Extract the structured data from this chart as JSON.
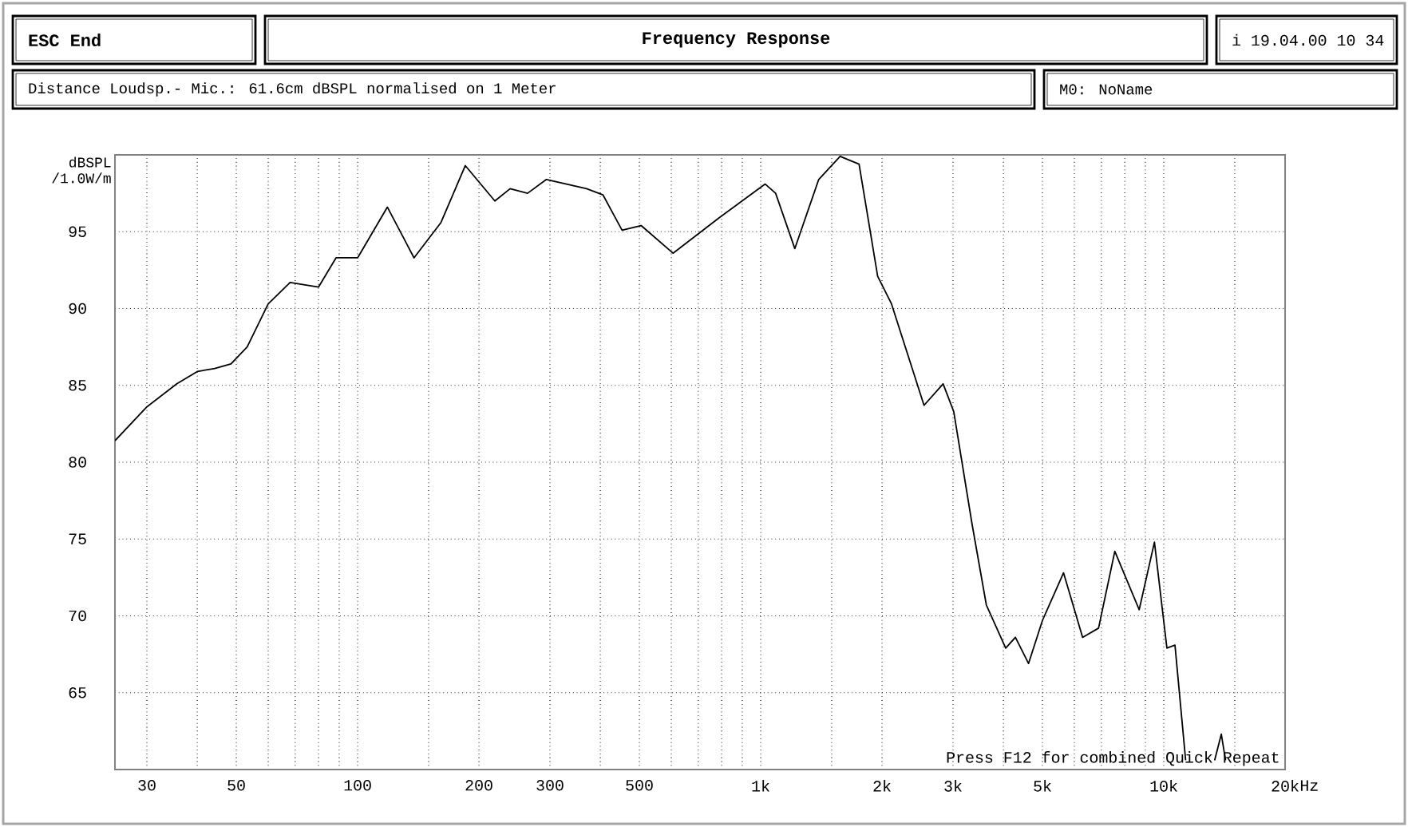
{
  "chart_data": {
    "type": "line",
    "title": "Frequency Response",
    "ylabel": "dBSPL /1.0W/m",
    "xlabel": "Hz",
    "annotations": [
      "ESC  End",
      "i 19.04.00 10 34",
      "Distance Loudsp.- Mic.: 61.6cm dBSPL normalised on 1 Meter",
      "M0:   NoName",
      "Press F12 for combined Quick Repeat"
    ],
    "x": [
      25,
      30,
      35.6,
      40,
      44.2,
      48.5,
      53.2,
      60,
      68,
      80,
      88.4,
      100,
      118.5,
      138,
      161,
      185,
      219,
      239,
      264,
      294,
      370,
      406,
      453,
      505,
      606,
      788,
      1026,
      1089,
      1215,
      1393,
      1574,
      1754,
      1951,
      2111,
      2542,
      2835,
      3012,
      3343,
      3630,
      4053,
      4284,
      4618,
      5000,
      5640,
      6290,
      6890,
      7560,
      8690,
      9480,
      10180,
      10660,
      11330,
      12300,
      13370,
      13890,
      14230
    ],
    "values": [
      81.4,
      83.6,
      85.1,
      85.9,
      86.1,
      86.4,
      87.5,
      90.3,
      91.7,
      91.4,
      93.3,
      93.3,
      96.6,
      93.3,
      95.6,
      99.3,
      97.0,
      97.8,
      97.5,
      98.4,
      97.8,
      97.4,
      95.1,
      95.4,
      93.6,
      95.9,
      98.1,
      97.5,
      93.9,
      98.4,
      99.9,
      99.4,
      92.1,
      90.3,
      83.7,
      85.1,
      83.3,
      76.0,
      70.7,
      67.9,
      68.6,
      66.9,
      69.7,
      72.8,
      68.6,
      69.2,
      74.2,
      70.4,
      74.8,
      67.9,
      68.1,
      60.6,
      null,
      60.6,
      62.3,
      60.6
    ],
    "color": "#000000",
    "line_style": "solid",
    "log": "x",
    "grid": true,
    "xlim": [
      25,
      20000
    ],
    "ylim": [
      60,
      100
    ],
    "xticks": [
      30,
      {
        "value": 40,
        "label": null
      },
      50,
      {
        "value": 60,
        "label": null
      },
      {
        "value": 70,
        "label": null
      },
      {
        "value": 80,
        "label": null
      },
      {
        "value": 90,
        "label": null
      },
      100,
      {
        "value": 150,
        "label": null
      },
      200,
      300,
      {
        "value": 400,
        "label": null
      },
      500,
      {
        "value": 600,
        "label": null
      },
      {
        "value": 700,
        "label": null
      },
      {
        "value": 800,
        "label": null
      },
      {
        "value": 900,
        "label": null
      },
      {
        "value": 1000,
        "label": "1k"
      },
      {
        "value": 1500,
        "label": null
      },
      {
        "value": 2000,
        "label": "2k"
      },
      {
        "value": 3000,
        "label": "3k"
      },
      {
        "value": 4000,
        "label": null
      },
      {
        "value": 5000,
        "label": "5k"
      },
      {
        "value": 6000,
        "label": null
      },
      {
        "value": 7000,
        "label": null
      },
      {
        "value": 8000,
        "label": null
      },
      {
        "value": 9000,
        "label": null
      },
      {
        "value": 10000,
        "label": "10k"
      },
      {
        "value": 15000,
        "label": null
      },
      {
        "value": 20000,
        "label": "20k"
      }
    ],
    "yticks": [
      65,
      70,
      75,
      80,
      85,
      90,
      95
    ]
  }
}
